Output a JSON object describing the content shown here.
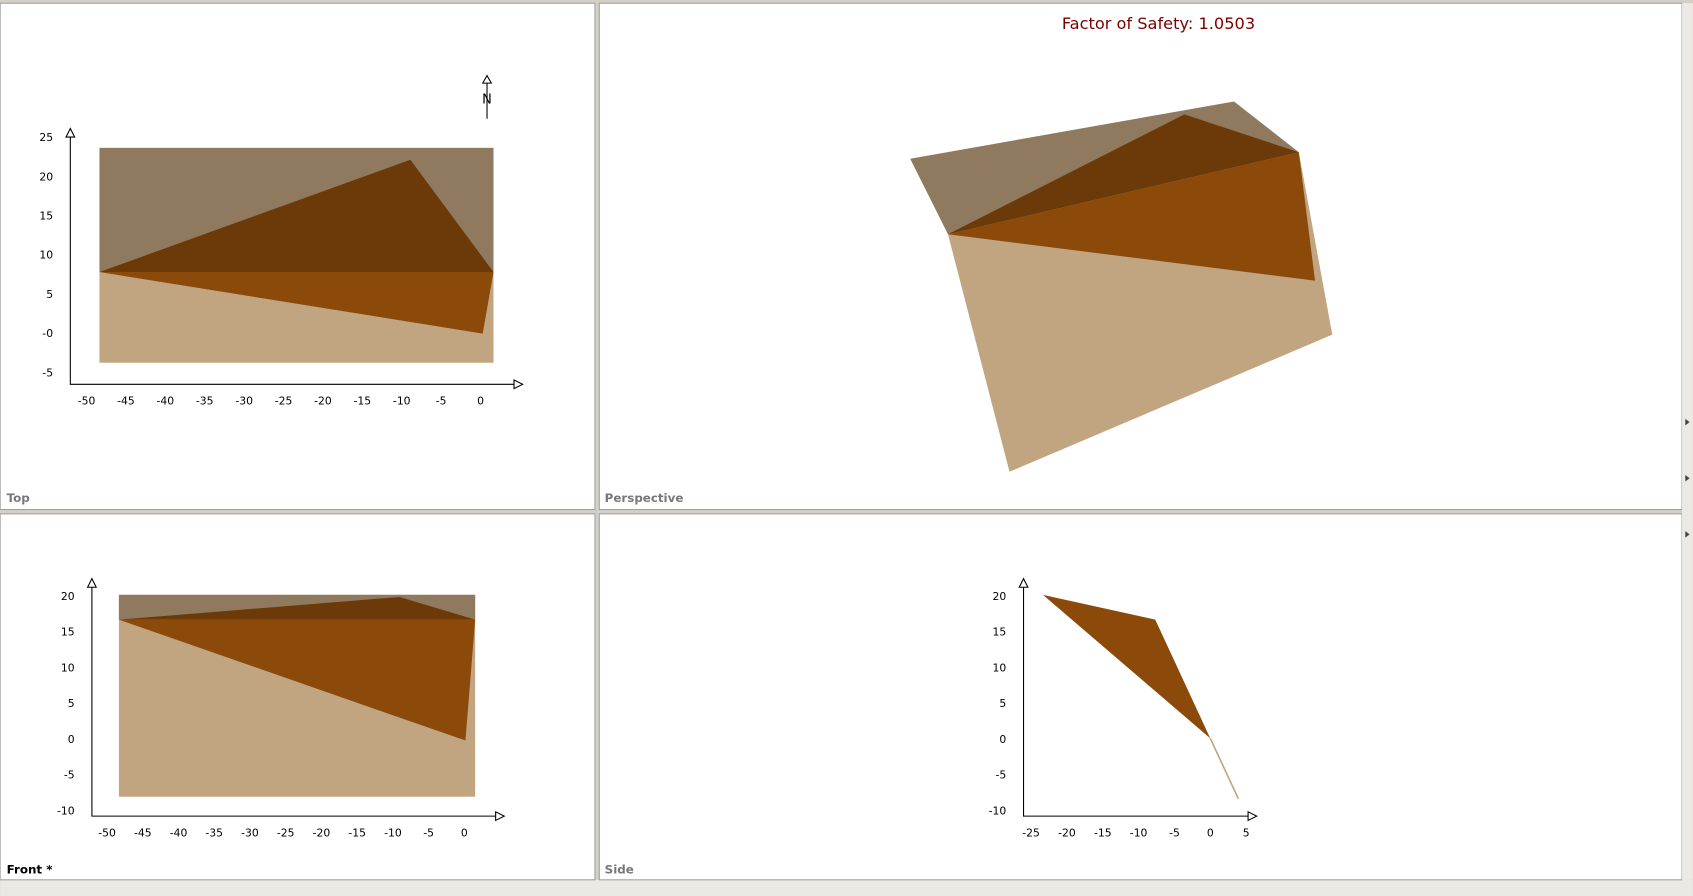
{
  "header": {
    "factor_of_safety": "Factor of Safety: 1.0503"
  },
  "north_label": "N",
  "views": [
    {
      "label": "Top",
      "x_ticks": [
        "-50",
        "-45",
        "-40",
        "-35",
        "-30",
        "-25",
        "-20",
        "-15",
        "-10",
        "-5",
        "0"
      ],
      "y_ticks": [
        "25",
        "20",
        "15",
        "10",
        "5",
        "-0",
        "-5"
      ]
    },
    {
      "label": "Perspective"
    },
    {
      "label": "Front *",
      "x_ticks": [
        "-50",
        "-45",
        "-40",
        "-35",
        "-30",
        "-25",
        "-20",
        "-15",
        "-10",
        "-5",
        "0"
      ],
      "y_ticks": [
        "20",
        "15",
        "10",
        "5",
        "0",
        "-5",
        "-10"
      ]
    },
    {
      "label": "Side",
      "x_ticks": [
        "-25",
        "-20",
        "-15",
        "-10",
        "-5",
        "0",
        "5"
      ],
      "y_ticks": [
        "20",
        "15",
        "10",
        "5",
        "0",
        "-5",
        "-10"
      ]
    }
  ]
}
